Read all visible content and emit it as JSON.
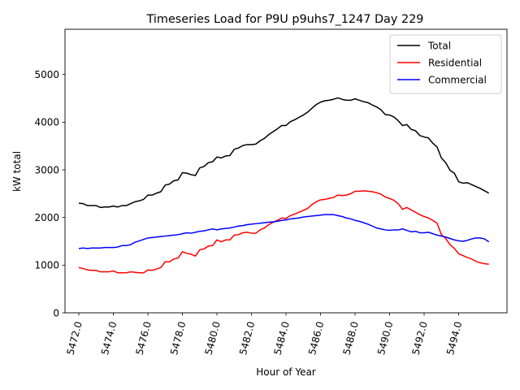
{
  "chart_data": {
    "type": "line",
    "title": "Timeseries Load for P9U p9uhs7_1247  Day 229",
    "xlabel": "Hour of Year",
    "ylabel": "kW total",
    "xlim": [
      5471.2,
      5496.8
    ],
    "ylim": [
      0,
      5950
    ],
    "xticks": [
      5472,
      5474,
      5476,
      5478,
      5480,
      5482,
      5484,
      5486,
      5488,
      5490,
      5492,
      5494
    ],
    "xtick_labels": [
      "5472.0",
      "5474.0",
      "5476.0",
      "5478.0",
      "5480.0",
      "5482.0",
      "5484.0",
      "5486.0",
      "5488.0",
      "5490.0",
      "5492.0",
      "5494.0"
    ],
    "yticks": [
      0,
      1000,
      2000,
      3000,
      4000,
      5000
    ],
    "ytick_labels": [
      "0",
      "1000",
      "2000",
      "3000",
      "4000",
      "5000"
    ],
    "legend_position": "top-right",
    "x_start": 5472,
    "x_step": 0.25,
    "series": [
      {
        "name": "Total",
        "color": "#000000",
        "values": [
          2300,
          2290,
          2250,
          2250,
          2250,
          2210,
          2220,
          2220,
          2240,
          2220,
          2250,
          2250,
          2290,
          2330,
          2350,
          2380,
          2470,
          2470,
          2510,
          2540,
          2680,
          2700,
          2770,
          2790,
          2940,
          2930,
          2900,
          2880,
          3040,
          3070,
          3150,
          3170,
          3270,
          3250,
          3290,
          3300,
          3430,
          3460,
          3510,
          3530,
          3530,
          3540,
          3610,
          3660,
          3740,
          3800,
          3860,
          3930,
          3930,
          4010,
          4050,
          4100,
          4150,
          4210,
          4290,
          4370,
          4420,
          4450,
          4460,
          4480,
          4510,
          4480,
          4460,
          4460,
          4490,
          4460,
          4430,
          4410,
          4360,
          4320,
          4260,
          4160,
          4150,
          4110,
          4030,
          3930,
          3950,
          3850,
          3820,
          3720,
          3690,
          3670,
          3560,
          3480,
          3250,
          3150,
          2990,
          2930,
          2750,
          2720,
          2730,
          2690,
          2650,
          2610,
          2560,
          2510
        ]
      },
      {
        "name": "Residential",
        "color": "#ff0000",
        "values": [
          950,
          930,
          900,
          890,
          890,
          860,
          860,
          860,
          880,
          840,
          840,
          840,
          860,
          850,
          840,
          840,
          900,
          890,
          920,
          950,
          1070,
          1070,
          1130,
          1150,
          1280,
          1250,
          1230,
          1190,
          1320,
          1340,
          1400,
          1410,
          1530,
          1490,
          1530,
          1530,
          1630,
          1640,
          1680,
          1690,
          1670,
          1670,
          1740,
          1780,
          1850,
          1900,
          1940,
          1990,
          1980,
          2040,
          2070,
          2110,
          2150,
          2190,
          2270,
          2330,
          2370,
          2380,
          2400,
          2420,
          2470,
          2460,
          2470,
          2500,
          2550,
          2550,
          2560,
          2550,
          2540,
          2520,
          2490,
          2430,
          2400,
          2360,
          2290,
          2170,
          2210,
          2160,
          2110,
          2060,
          2020,
          1990,
          1940,
          1880,
          1640,
          1560,
          1430,
          1350,
          1240,
          1200,
          1160,
          1130,
          1080,
          1050,
          1030,
          1020
        ]
      },
      {
        "name": "Commercial",
        "color": "#0000ff",
        "values": [
          1350,
          1360,
          1350,
          1360,
          1360,
          1360,
          1370,
          1370,
          1370,
          1380,
          1410,
          1410,
          1430,
          1480,
          1510,
          1540,
          1570,
          1580,
          1590,
          1600,
          1610,
          1620,
          1630,
          1640,
          1660,
          1680,
          1670,
          1690,
          1710,
          1720,
          1740,
          1760,
          1740,
          1760,
          1770,
          1780,
          1800,
          1820,
          1830,
          1850,
          1860,
          1870,
          1880,
          1890,
          1900,
          1910,
          1920,
          1940,
          1950,
          1970,
          1980,
          1990,
          2010,
          2020,
          2030,
          2040,
          2050,
          2060,
          2060,
          2060,
          2040,
          2020,
          1990,
          1970,
          1940,
          1920,
          1890,
          1860,
          1820,
          1780,
          1760,
          1740,
          1730,
          1740,
          1740,
          1760,
          1730,
          1700,
          1710,
          1680,
          1680,
          1690,
          1660,
          1630,
          1610,
          1590,
          1560,
          1530,
          1510,
          1500,
          1520,
          1550,
          1570,
          1570,
          1550,
          1490
        ]
      }
    ]
  }
}
